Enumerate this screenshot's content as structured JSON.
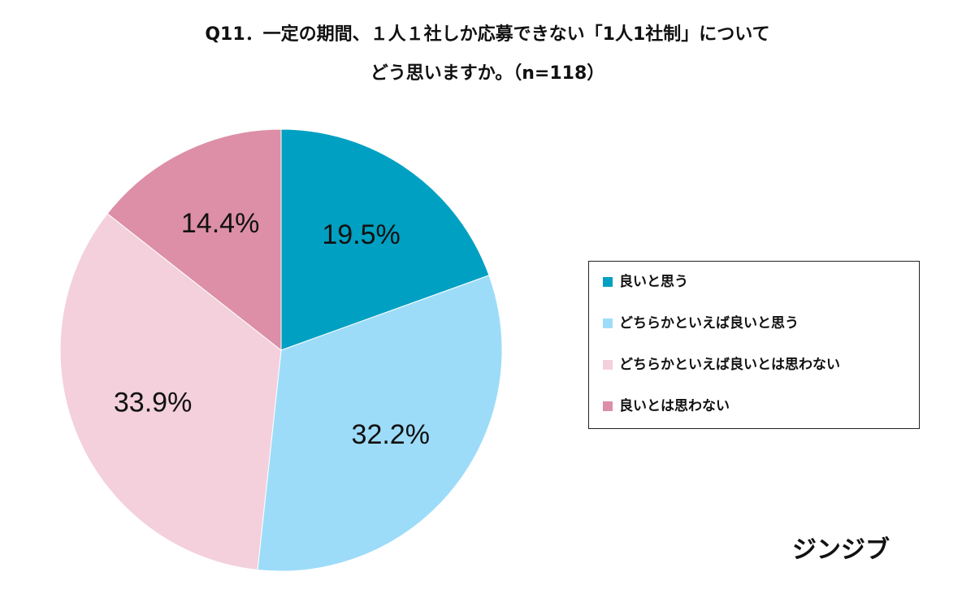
{
  "chart_data": {
    "type": "pie",
    "title": "Q11．一定の期間、１人１社しか応募できない「1人1社制」について",
    "subtitle": "どう思いますか。（n=118）",
    "series": [
      {
        "name": "良いと思う",
        "color": "#00a0c2"
      },
      {
        "name": "どちらかといえば良いと思う",
        "color": "#9ddcf9"
      },
      {
        "name": "どちらかといえば良いとは思わない",
        "color": "#f3d0dc"
      },
      {
        "name": "良いとは思わない",
        "color": "#dc8fa6"
      }
    ],
    "values": [
      19.5,
      32.2,
      33.9,
      14.4
    ],
    "value_labels": [
      "19.5%",
      "32.2%",
      "33.9%",
      "14.4%"
    ],
    "legend": "right",
    "brand": "ジンジブ"
  }
}
